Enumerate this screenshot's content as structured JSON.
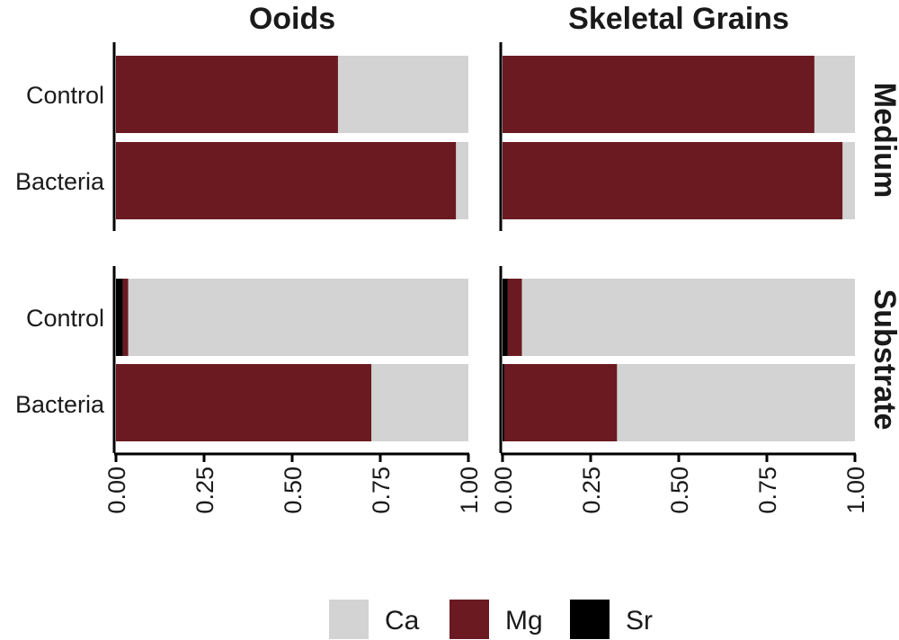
{
  "chart_data": {
    "type": "bar",
    "orientation": "horizontal",
    "stacked": true,
    "categories": [
      "Control",
      "Bacteria"
    ],
    "facet_columns": [
      "Ooids",
      "Skeletal Grains"
    ],
    "facet_rows": [
      "Medium",
      "Substrate"
    ],
    "stack_order": [
      "Sr",
      "Mg",
      "Ca"
    ],
    "series_colors": {
      "Ca": "#d3d3d3",
      "Mg": "#6b1a22",
      "Sr": "#000000"
    },
    "xlim": [
      0,
      1
    ],
    "x_ticks": [
      "0.00",
      "0.25",
      "0.50",
      "0.75",
      "1.00"
    ],
    "x_tick_values": [
      0,
      0.25,
      0.5,
      0.75,
      1
    ],
    "grid": false,
    "panels": [
      {
        "column": "Ooids",
        "row": "Medium",
        "bars": [
          {
            "category": "Control",
            "Sr": 0.0,
            "Mg": 0.63,
            "Ca": 0.37
          },
          {
            "category": "Bacteria",
            "Sr": 0.0,
            "Mg": 0.965,
            "Ca": 0.035
          }
        ]
      },
      {
        "column": "Skeletal Grains",
        "row": "Medium",
        "bars": [
          {
            "category": "Control",
            "Sr": 0.0,
            "Mg": 0.885,
            "Ca": 0.115
          },
          {
            "category": "Bacteria",
            "Sr": 0.0,
            "Mg": 0.965,
            "Ca": 0.035
          }
        ]
      },
      {
        "column": "Ooids",
        "row": "Substrate",
        "bars": [
          {
            "category": "Control",
            "Sr": 0.02,
            "Mg": 0.015,
            "Ca": 0.965
          },
          {
            "category": "Bacteria",
            "Sr": 0.0,
            "Mg": 0.725,
            "Ca": 0.275
          }
        ]
      },
      {
        "column": "Skeletal Grains",
        "row": "Substrate",
        "bars": [
          {
            "category": "Control",
            "Sr": 0.015,
            "Mg": 0.04,
            "Ca": 0.945
          },
          {
            "category": "Bacteria",
            "Sr": 0.005,
            "Mg": 0.32,
            "Ca": 0.675
          }
        ]
      }
    ],
    "legend": {
      "placement": "bottom",
      "items": [
        "Ca",
        "Mg",
        "Sr"
      ]
    }
  }
}
